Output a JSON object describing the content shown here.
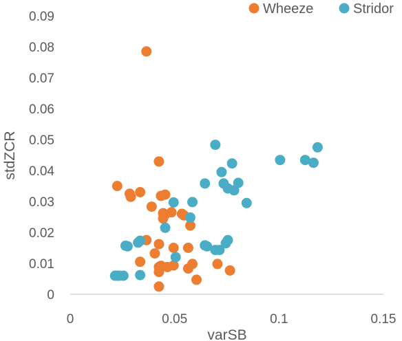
{
  "chart_data": {
    "type": "scatter",
    "xlabel": "varSB",
    "ylabel": "stdZCR",
    "xlim": [
      0,
      0.15
    ],
    "ylim": [
      0,
      0.09
    ],
    "xticks": [
      0,
      0.05,
      0.1,
      0.15
    ],
    "xtick_labels": [
      "0",
      "0.05",
      "0.1",
      "0.15"
    ],
    "yticks": [
      0,
      0.01,
      0.02,
      0.03,
      0.04,
      0.05,
      0.06,
      0.07,
      0.08,
      0.09
    ],
    "ytick_labels": [
      "0",
      "0.01",
      "0.02",
      "0.03",
      "0.04",
      "0.05",
      "0.06",
      "0.07",
      "0.08",
      "0.09"
    ],
    "grid": false,
    "legend_position": "top-right",
    "series": [
      {
        "name": "Wheeze",
        "color": "#ED7D31",
        "points": [
          [
            0.0365,
            0.0785
          ],
          [
            0.0425,
            0.0429
          ],
          [
            0.0225,
            0.035
          ],
          [
            0.0335,
            0.033
          ],
          [
            0.0285,
            0.0325
          ],
          [
            0.029,
            0.0315
          ],
          [
            0.0455,
            0.0322
          ],
          [
            0.0435,
            0.0318
          ],
          [
            0.039,
            0.0283
          ],
          [
            0.0445,
            0.0262
          ],
          [
            0.0485,
            0.0265
          ],
          [
            0.0535,
            0.026
          ],
          [
            0.0545,
            0.0255
          ],
          [
            0.0455,
            0.0258
          ],
          [
            0.0445,
            0.0245
          ],
          [
            0.0575,
            0.0222
          ],
          [
            0.0365,
            0.0175
          ],
          [
            0.0425,
            0.0162
          ],
          [
            0.0495,
            0.015
          ],
          [
            0.0565,
            0.015
          ],
          [
            0.0405,
            0.0132
          ],
          [
            0.0335,
            0.0105
          ],
          [
            0.0425,
            0.0088
          ],
          [
            0.0435,
            0.0092
          ],
          [
            0.0465,
            0.0088
          ],
          [
            0.0495,
            0.0093
          ],
          [
            0.0565,
            0.0083
          ],
          [
            0.0585,
            0.0098
          ],
          [
            0.0705,
            0.0098
          ],
          [
            0.0425,
            0.0072
          ],
          [
            0.0765,
            0.0077
          ],
          [
            0.0605,
            0.0047
          ],
          [
            0.0425,
            0.0025
          ]
        ]
      },
      {
        "name": "Stridor",
        "color": "#4BACC6",
        "points": [
          [
            0.0695,
            0.0483
          ],
          [
            0.1185,
            0.0475
          ],
          [
            0.1005,
            0.0434
          ],
          [
            0.1125,
            0.0434
          ],
          [
            0.1165,
            0.0425
          ],
          [
            0.0775,
            0.0423
          ],
          [
            0.0725,
            0.0395
          ],
          [
            0.0645,
            0.0358
          ],
          [
            0.0735,
            0.0358
          ],
          [
            0.0805,
            0.036
          ],
          [
            0.0755,
            0.0342
          ],
          [
            0.0785,
            0.0336
          ],
          [
            0.0495,
            0.0297
          ],
          [
            0.0585,
            0.0298
          ],
          [
            0.0845,
            0.0295
          ],
          [
            0.0575,
            0.0248
          ],
          [
            0.0455,
            0.0215
          ],
          [
            0.0335,
            0.0173
          ],
          [
            0.0325,
            0.0167
          ],
          [
            0.0265,
            0.0157
          ],
          [
            0.0275,
            0.0155
          ],
          [
            0.0645,
            0.0158
          ],
          [
            0.0655,
            0.0155
          ],
          [
            0.0755,
            0.0175
          ],
          [
            0.0745,
            0.0165
          ],
          [
            0.0695,
            0.0143
          ],
          [
            0.0715,
            0.0143
          ],
          [
            0.0505,
            0.012
          ],
          [
            0.0215,
            0.006
          ],
          [
            0.0225,
            0.006
          ],
          [
            0.0235,
            0.006
          ],
          [
            0.0255,
            0.006
          ],
          [
            0.0335,
            0.0062
          ]
        ]
      }
    ]
  }
}
